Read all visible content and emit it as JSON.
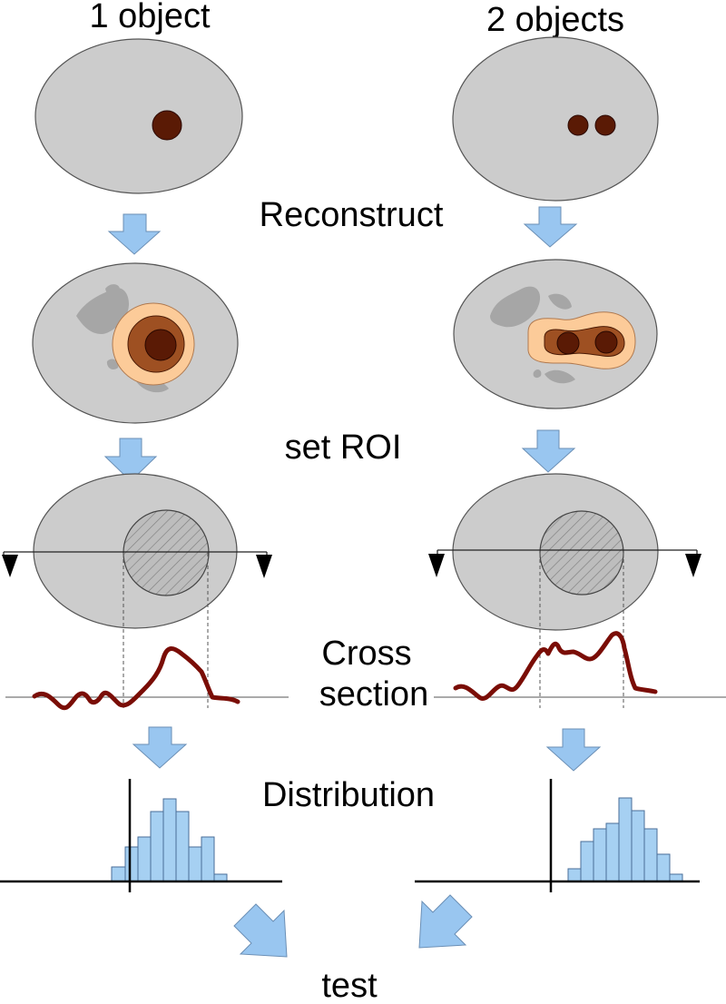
{
  "columns": {
    "left": "1 object",
    "right": "2 objects"
  },
  "steps": {
    "reconstruct": "Reconstruct",
    "set_roi": "set ROI",
    "cross_section_line1": "Cross",
    "cross_section_line2": "section",
    "distribution": "Distribution",
    "test": "test"
  },
  "colors": {
    "background_ellipse": "#cccccc",
    "object": "#5a1a05",
    "halo_outer": "#fccb99",
    "halo_mid": "#9e5022",
    "arrow_fill": "#99c6f0",
    "profile_line": "#7a0d06",
    "histogram_bar": "#a6d0f2",
    "shadow": "#a6a6a6"
  }
}
